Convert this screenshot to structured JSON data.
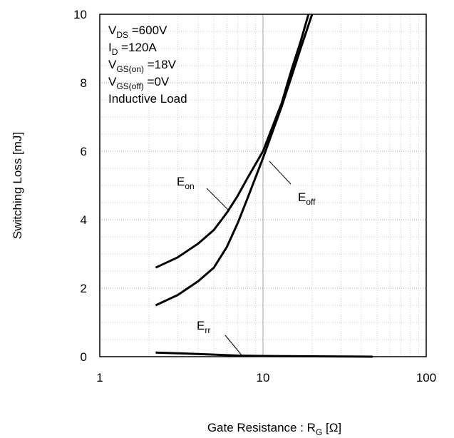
{
  "chart_data": {
    "type": "line",
    "xlabel": [
      "Gate Resistance : R",
      "G",
      "  [Ω]"
    ],
    "ylabel": "Switching Loss   [mJ]",
    "xscale": "log",
    "xlim": [
      1,
      100
    ],
    "xticks": [
      1,
      10,
      100
    ],
    "ylim": [
      0,
      10
    ],
    "yticks": [
      0,
      2,
      4,
      6,
      8,
      10
    ],
    "grid": true,
    "conditions": [
      [
        "V",
        "DS",
        " =600V"
      ],
      [
        "I",
        "D",
        " =120A"
      ],
      [
        "V",
        "GS(on)",
        " =18V"
      ],
      [
        "V",
        "GS(off)",
        " =0V"
      ],
      [
        "Inductive Load",
        "",
        ""
      ]
    ],
    "series": [
      {
        "name": [
          "E",
          "on"
        ],
        "color": "#000000",
        "x": [
          2.2,
          3,
          4,
          5,
          6,
          7,
          8,
          10,
          13,
          15,
          17,
          19
        ],
        "values": [
          2.6,
          2.9,
          3.3,
          3.7,
          4.2,
          4.7,
          5.2,
          6.0,
          7.4,
          8.4,
          9.2,
          10
        ]
      },
      {
        "name": [
          "E",
          "off"
        ],
        "color": "#000000",
        "x": [
          2.2,
          3,
          4,
          5,
          6,
          7,
          8,
          10,
          13,
          15,
          17,
          20
        ],
        "values": [
          1.5,
          1.8,
          2.2,
          2.6,
          3.2,
          3.9,
          4.6,
          5.8,
          7.3,
          8.2,
          9.0,
          10
        ]
      },
      {
        "name": [
          "E",
          "rr"
        ],
        "color": "#000000",
        "x": [
          2.2,
          3,
          5,
          7,
          10,
          20,
          47
        ],
        "values": [
          0.12,
          0.1,
          0.06,
          0.03,
          0.02,
          0.01,
          0
        ]
      }
    ]
  }
}
